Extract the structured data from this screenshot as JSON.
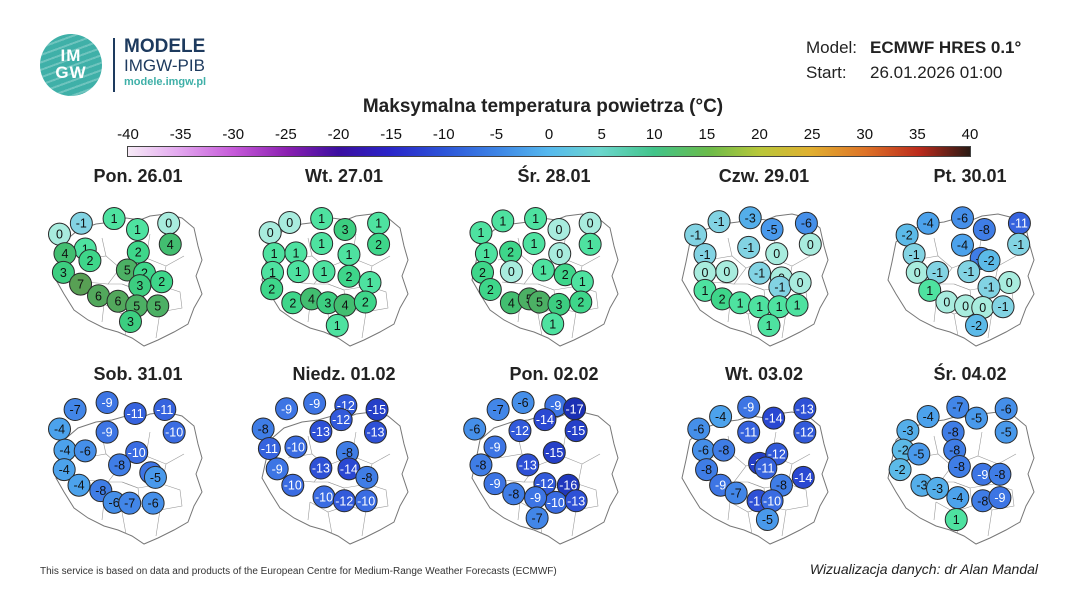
{
  "brand": {
    "logo_text": "IM GW",
    "name": "MODELE",
    "org": "IMGW-PIB",
    "url": "modele.imgw.pl"
  },
  "meta": {
    "model_label": "Model:",
    "model_value": "ECMWF HRES 0.1°",
    "start_label": "Start:",
    "start_value": "26.01.2026 01:00"
  },
  "chart_data": {
    "type": "map-grid",
    "title": "Maksymalna temperatura powietrza (°C)",
    "colorbar": {
      "ticks": [
        -40,
        -35,
        -30,
        -25,
        -20,
        -15,
        -10,
        -5,
        0,
        5,
        10,
        15,
        20,
        25,
        30,
        35,
        40
      ],
      "range": [
        -40,
        40
      ],
      "unit": "°C"
    },
    "panels": [
      {
        "date": "Pon. 26.01",
        "values": [
          0,
          -1,
          1,
          1,
          0,
          1,
          2,
          4,
          4,
          2,
          5,
          3,
          2,
          7,
          3,
          2,
          6,
          6,
          5,
          5,
          3
        ]
      },
      {
        "date": "Wt. 27.01",
        "values": [
          0,
          0,
          1,
          3,
          1,
          2,
          1,
          1,
          1,
          1,
          1,
          1,
          1,
          2,
          2,
          1,
          2,
          4,
          3,
          4,
          2,
          1
        ]
      },
      {
        "date": "Śr. 28.01",
        "values": [
          1,
          1,
          1,
          0,
          0,
          1,
          1,
          2,
          1,
          0,
          2,
          0,
          1,
          2,
          2,
          1,
          4,
          5,
          5,
          3,
          2,
          1
        ]
      },
      {
        "date": "Czw. 29.01",
        "values": [
          -1,
          -1,
          -3,
          -5,
          -6,
          0,
          -1,
          -1,
          0,
          0,
          0,
          -1,
          0,
          1,
          -1,
          0,
          2,
          1,
          1,
          1,
          1,
          1
        ]
      },
      {
        "date": "Pt. 30.01",
        "values": [
          -2,
          -4,
          -6,
          -8,
          -11,
          -1,
          -4,
          -1,
          -8,
          0,
          -1,
          -2,
          -1,
          1,
          0,
          0,
          -1,
          0,
          0,
          -1,
          -2
        ]
      },
      {
        "date": "Sob. 31.01",
        "values": [
          -7,
          -9,
          -11,
          -11,
          -4,
          -9,
          -10,
          -4,
          -6,
          -10,
          -4,
          -8,
          -9,
          -4,
          -8,
          -5,
          -6,
          -7,
          -6
        ]
      },
      {
        "date": "Niedz. 01.02",
        "values": [
          -9,
          -9,
          -12,
          -15,
          -8,
          -12,
          -13,
          -11,
          -10,
          -13,
          -8,
          -9,
          -13,
          -14,
          -8,
          -10,
          -10,
          -12,
          -10
        ]
      },
      {
        "date": "Pon. 02.02",
        "values": [
          -7,
          -6,
          -9,
          -17,
          -14,
          -15,
          -12,
          -6,
          -9,
          -15,
          -8,
          -13,
          -9,
          -12,
          -16,
          -8,
          -10,
          -13,
          -9,
          -7
        ]
      },
      {
        "date": "Wt. 03.02",
        "values": [
          -6,
          -4,
          -9,
          -14,
          -13,
          -12,
          -11,
          -6,
          -8,
          -15,
          -8,
          -12,
          -9,
          -11,
          -14,
          -7,
          -8,
          -13,
          -10,
          -5
        ]
      },
      {
        "date": "Śr. 04.02",
        "values": [
          -3,
          -4,
          -7,
          -5,
          -6,
          -5,
          -8,
          -2,
          -5,
          -8,
          -2,
          -8,
          -3,
          -9,
          -8,
          -3,
          -4,
          -8,
          -9,
          1
        ]
      }
    ]
  },
  "footer": {
    "source_note": "This service is based on data and products of the European Centre for Medium-Range Weather Forecasts (ECMWF)",
    "credit": "Wizualizacja danych: dr Alan Mandal"
  }
}
